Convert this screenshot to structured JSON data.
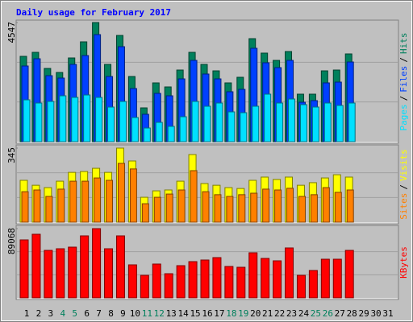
{
  "chart_data": [
    {
      "type": "bar",
      "title": "Daily usage for February 2017",
      "ylim": [
        0,
        4547
      ],
      "yticks": [
        4547
      ],
      "grid_divisions": 3,
      "legend_separator": "/",
      "series": [
        {
          "name": "Hits",
          "color": "#00805c",
          "values": [
            3257,
            3410,
            2796,
            2642,
            3195,
            3810,
            4547,
            2949,
            4055,
            2488,
            1290,
            2243,
            2089,
            2734,
            3410,
            2949,
            2703,
            2243,
            2458,
            3932,
            3380,
            3103,
            3441,
            1813,
            1813,
            2703,
            2734,
            3349,
            null,
            null,
            null
          ]
        },
        {
          "name": "Files",
          "color": "#0040ff",
          "values": [
            2888,
            3164,
            2519,
            2427,
            2949,
            3287,
            4086,
            2488,
            3625,
            2028,
            1045,
            1843,
            1751,
            2396,
            3103,
            2581,
            2396,
            1905,
            1997,
            3564,
            3011,
            2826,
            3103,
            1505,
            1567,
            2243,
            2273,
            3041,
            null,
            null,
            null
          ]
        },
        {
          "name": "Pages",
          "color": "#00e0ff",
          "values": [
            1597,
            1475,
            1536,
            1751,
            1690,
            1782,
            1690,
            1321,
            1536,
            922,
            522,
            737,
            584,
            952,
            1536,
            1352,
            1475,
            1137,
            1106,
            1352,
            1813,
            1475,
            1628,
            1413,
            1321,
            1475,
            1383,
            1475,
            null,
            null,
            null
          ]
        }
      ]
    },
    {
      "type": "bar",
      "ylim": [
        0,
        345
      ],
      "yticks": [
        345
      ],
      "grid_divisions": 3,
      "legend_separator": "/",
      "series": [
        {
          "name": "Visits",
          "color": "#ffff00",
          "values": [
            195,
            172,
            161,
            191,
            232,
            236,
            251,
            232,
            345,
            285,
            116,
            146,
            150,
            191,
            315,
            180,
            172,
            161,
            157,
            195,
            210,
            199,
            210,
            172,
            184,
            206,
            221,
            210,
            null,
            null,
            null
          ]
        },
        {
          "name": "Sites",
          "color": "#ff8000",
          "values": [
            142,
            150,
            120,
            154,
            191,
            191,
            206,
            195,
            274,
            248,
            86,
            116,
            131,
            150,
            240,
            142,
            128,
            120,
            128,
            135,
            154,
            150,
            158,
            120,
            128,
            161,
            139,
            150,
            null,
            null,
            null
          ]
        }
      ]
    },
    {
      "type": "bar",
      "ylim": [
        0,
        89068
      ],
      "yticks": [
        89068
      ],
      "grid_divisions": 3,
      "categories": [
        "1",
        "2",
        "3",
        "4",
        "5",
        "6",
        "7",
        "8",
        "9",
        "10",
        "11",
        "12",
        "13",
        "14",
        "15",
        "16",
        "17",
        "18",
        "19",
        "20",
        "21",
        "22",
        "23",
        "24",
        "25",
        "26",
        "27",
        "28",
        "29",
        "30",
        "31"
      ],
      "category_colors": [
        "#000000",
        "#000000",
        "#000000",
        "#00805c",
        "#00805c",
        "#000000",
        "#000000",
        "#000000",
        "#000000",
        "#000000",
        "#00805c",
        "#00805c",
        "#000000",
        "#000000",
        "#000000",
        "#000000",
        "#000000",
        "#00805c",
        "#00805c",
        "#000000",
        "#000000",
        "#000000",
        "#000000",
        "#000000",
        "#00805c",
        "#00805c",
        "#000000",
        "#000000",
        "#000000",
        "#000000",
        "#000000"
      ],
      "series": [
        {
          "name": "KBytes",
          "color": "#ff0000",
          "values": [
            74569,
            81819,
            61106,
            63177,
            65250,
            79747,
            89068,
            63177,
            79747,
            42463,
            28999,
            43500,
            31070,
            41427,
            46606,
            48678,
            51784,
            40392,
            39356,
            57999,
            50749,
            47641,
            64213,
            28999,
            35213,
            49713,
            49713,
            61106,
            null,
            null,
            null
          ]
        }
      ]
    }
  ]
}
